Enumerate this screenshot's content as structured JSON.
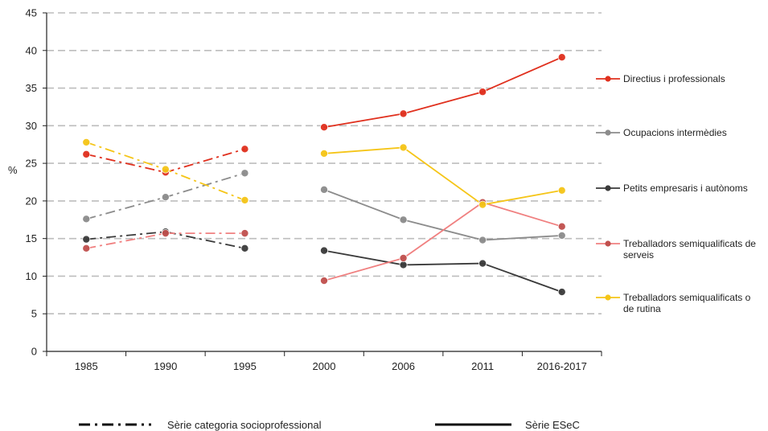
{
  "chart_data": {
    "type": "line",
    "title": "",
    "xlabel": "",
    "ylabel": "%",
    "ylim": [
      0,
      45
    ],
    "yticks": [
      "0",
      "5",
      "10",
      "15",
      "20",
      "25",
      "30",
      "35",
      "40",
      "45"
    ],
    "categories": [
      "1985",
      "1990",
      "1995",
      "2000",
      "2006",
      "2011",
      "2016-2017"
    ],
    "grid": "horizontal dashed",
    "legend_position": "right",
    "series": [
      {
        "name": "Directius i professionals",
        "color": "#e0301e",
        "ccs_values": [
          26.2,
          23.8,
          26.9
        ],
        "esec_values": [
          29.8,
          31.6,
          34.5,
          39.1
        ]
      },
      {
        "name": "Ocupacions intermèdies",
        "color": "#8c8c8c",
        "ccs_values": [
          17.6,
          20.5,
          23.7
        ],
        "esec_values": [
          21.5,
          17.5,
          14.8,
          15.4
        ]
      },
      {
        "name": "Petits empresaris i autònoms",
        "color": "#3a3a3a",
        "ccs_values": [
          14.9,
          15.9,
          13.7
        ],
        "esec_values": [
          13.4,
          11.5,
          11.7,
          7.9
        ]
      },
      {
        "name": "Treballadors semiqualificats de serveis",
        "name_lines": [
          "Treballadors semiqualificats de",
          "serveis"
        ],
        "color": "#f08080",
        "marker_color": "#c0504d",
        "ccs_values": [
          13.7,
          15.7,
          15.7
        ],
        "esec_values": [
          9.4,
          12.4,
          19.8,
          16.6
        ]
      },
      {
        "name": "Treballadors semiqualificats o de rutina",
        "name_lines": [
          "Treballadors semiqualificats o",
          "de rutina"
        ],
        "color": "#f5c518",
        "ccs_values": [
          27.8,
          24.2,
          20.1
        ],
        "esec_values": [
          26.3,
          27.1,
          19.5,
          21.4
        ]
      }
    ],
    "line_style_legend": {
      "dashdot_label": "Sèrie categoria socioprofessional",
      "solid_label": "Sèrie ESeC"
    }
  }
}
